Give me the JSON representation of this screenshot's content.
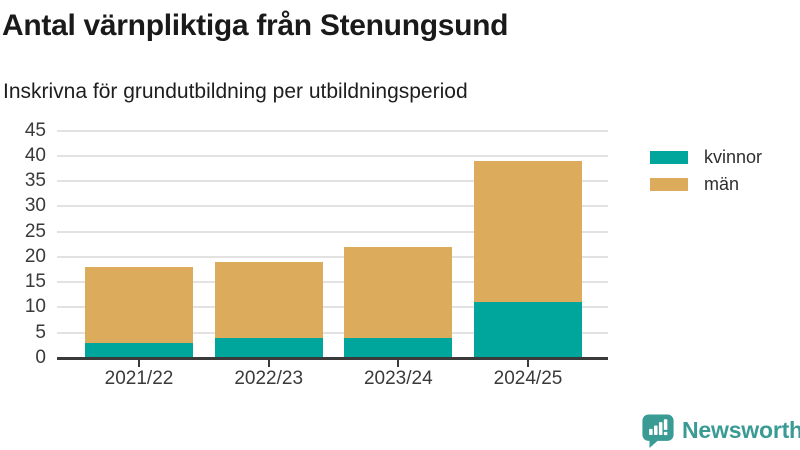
{
  "chart_data": {
    "type": "bar",
    "stacked": true,
    "title": "Antal värnpliktiga från Stenungsund",
    "subtitle": "Inskrivna för grundutbildning per utbildningsperiod",
    "categories": [
      "2021/22",
      "2022/23",
      "2023/24",
      "2024/25"
    ],
    "series": [
      {
        "name": "kvinnor",
        "color": "#00a69c",
        "values": [
          3,
          4,
          4,
          11
        ]
      },
      {
        "name": "män",
        "color": "#dcac5c",
        "values": [
          15,
          15,
          18,
          28
        ]
      }
    ],
    "stack_totals": [
      18,
      19,
      22,
      39
    ],
    "ylim": [
      0,
      45
    ],
    "y_tick_step": 5,
    "y_tick_labels": [
      "0",
      "5",
      "10",
      "15",
      "20",
      "25",
      "30",
      "35",
      "40",
      "45"
    ],
    "xlabel": "",
    "ylabel": "",
    "grid": true,
    "legend_position": "right"
  },
  "branding": {
    "logo_text": "Newsworthy",
    "brand_color": "#3a9b95"
  },
  "colors": {
    "title_text": "#1a1a1a",
    "axis_text": "#3a3a3a",
    "axis_line": "#3a3a3a",
    "grid_line": "#e2e2e2",
    "background": "#ffffff"
  }
}
